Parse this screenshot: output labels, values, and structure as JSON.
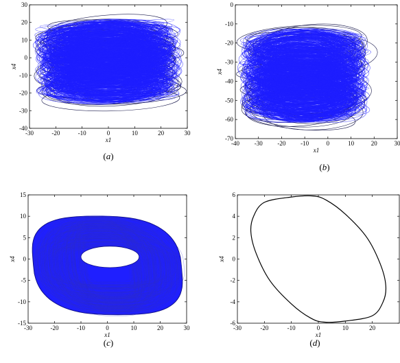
{
  "colors": {
    "trajectory_blue": "#1f1fff",
    "trajectory_dark": "#1a1a4d",
    "closed_orbit": "#000000",
    "axes": "#000000",
    "background": "#ffffff"
  },
  "chart_data": [
    {
      "id": "a",
      "type": "line",
      "caption_letter": "a",
      "title": "",
      "xlabel": "x1",
      "ylabel": "x4",
      "xlim": [
        -30,
        30
      ],
      "ylim": [
        -40,
        30
      ],
      "xticks": [
        -30,
        -20,
        -10,
        0,
        10,
        20,
        30
      ],
      "yticks": [
        -40,
        -30,
        -20,
        -10,
        0,
        10,
        20,
        30
      ],
      "grid": false,
      "description_values": {
        "center": [
          0,
          -2
        ],
        "x_range": [
          -27,
          27
        ],
        "y_range": [
          -32,
          25
        ]
      },
      "series": [
        {
          "color": "#1f1fff",
          "style": "dense chaotic orbits"
        }
      ]
    },
    {
      "id": "b",
      "type": "line",
      "caption_letter": "b",
      "title": "",
      "xlabel": "x1",
      "ylabel": "x4",
      "xlim": [
        -40,
        30
      ],
      "ylim": [
        -70,
        0
      ],
      "xticks": [
        -40,
        -30,
        -20,
        -10,
        0,
        10,
        20,
        30
      ],
      "yticks": [
        -70,
        -60,
        -50,
        -40,
        -30,
        -20,
        -10,
        0
      ],
      "grid": false,
      "description_values": {
        "center": [
          -10,
          -37
        ],
        "x_range": [
          -36,
          19
        ],
        "y_range": [
          -65,
          -8
        ]
      },
      "series": [
        {
          "color": "#1f1fff",
          "style": "dense chaotic orbits"
        }
      ]
    },
    {
      "id": "c",
      "type": "line",
      "caption_letter": "c",
      "title": "",
      "xlabel": "x1",
      "ylabel": "x4",
      "xlim": [
        -30,
        30
      ],
      "ylim": [
        -15,
        15
      ],
      "xticks": [
        -30,
        -20,
        -10,
        0,
        10,
        20,
        30
      ],
      "yticks": [
        -15,
        -10,
        -5,
        0,
        5,
        10,
        15
      ],
      "grid": false,
      "description_values": {
        "shape": "torus",
        "outer_x": [
          -28,
          28
        ],
        "outer_y": [
          -13,
          10
        ],
        "hole_x": [
          -10,
          12
        ],
        "hole_y": [
          -2,
          3
        ]
      },
      "series": [
        {
          "color": "#1f1fff",
          "style": "quasi-periodic torus"
        }
      ]
    },
    {
      "id": "d",
      "type": "line",
      "caption_letter": "d",
      "title": "",
      "xlabel": "x1",
      "ylabel": "x4",
      "xlim": [
        -30,
        30
      ],
      "ylim": [
        -6,
        6
      ],
      "xticks": [
        -30,
        -20,
        -10,
        0,
        10,
        20
      ],
      "yticks": [
        -6,
        -4,
        -2,
        0,
        2,
        4,
        6
      ],
      "grid": false,
      "orbit_points": [
        [
          -25,
          2.5
        ],
        [
          -24,
          4
        ],
        [
          -20,
          5.3
        ],
        [
          -10,
          5.8
        ],
        [
          -2,
          5.9
        ],
        [
          3,
          5.5
        ],
        [
          10,
          4.2
        ],
        [
          18,
          2.0
        ],
        [
          23,
          -0.5
        ],
        [
          25,
          -2.5
        ],
        [
          24,
          -4
        ],
        [
          20,
          -5.3
        ],
        [
          10,
          -5.8
        ],
        [
          2,
          -5.9
        ],
        [
          -3,
          -5.5
        ],
        [
          -10,
          -4.2
        ],
        [
          -18,
          -2.0
        ],
        [
          -23,
          0.5
        ]
      ],
      "series": [
        {
          "color": "#000000",
          "style": "single closed periodic orbit"
        }
      ]
    }
  ]
}
